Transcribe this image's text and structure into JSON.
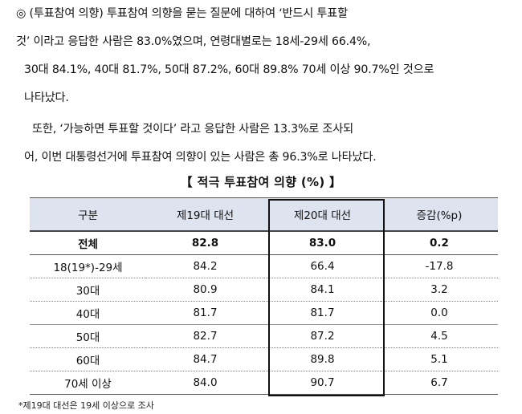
{
  "paragraph1": {
    "lines": [
      "◎ (투표참여 의향) 투표참여 의향을 묻는 질문에 대하여 ‘반드시 투표할",
      "것’ 이라고 응답한 사람은 83.0%였으며, 연령대별로는 18세-29세 66.4%,",
      "30대 84.1%, 40대 81.7%, 50대 87.2%, 60대 89.8% 70세 이상 90.7%인 것으로",
      "나타났다."
    ]
  },
  "paragraph2": {
    "lines": [
      "또한, ‘가능하면 투표할 것이다’ 라고 응답한 사람은 13.3%로 조사되",
      "어, 이번 대통령선거에 투표참여 의향이 있는 사람은 총 96.3%로 나타났다."
    ]
  },
  "table_title": "【 적극 투표참여 의향 (%) 】",
  "table": {
    "headers": [
      "구분",
      "제19대 대선",
      "제20대 대선",
      "증감(%p)"
    ],
    "rows": [
      [
        "전체",
        "82.8",
        "83.0",
        "0.2"
      ],
      [
        "18(19*)-29세",
        "84.2",
        "66.4",
        "-17.8"
      ],
      [
        "30대",
        "80.9",
        "84.1",
        "3.2"
      ],
      [
        "40대",
        "81.7",
        "81.7",
        "0.0"
      ],
      [
        "50대",
        "82.7",
        "87.2",
        "4.5"
      ],
      [
        "60대",
        "84.7",
        "89.8",
        "5.1"
      ],
      [
        "70세 이상",
        "84.0",
        "90.7",
        "6.7"
      ]
    ]
  },
  "footnote": "*제19대 대선은 19세 이상으로 조사",
  "colors": {
    "header_bg": "#dde4ef",
    "highlight_border": "#111111"
  }
}
